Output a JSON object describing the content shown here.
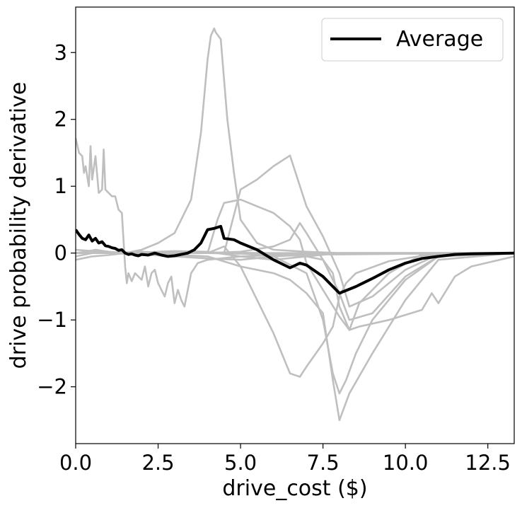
{
  "chart_data": {
    "type": "line",
    "title": "",
    "xlabel": "drive_cost ($)",
    "ylabel": "drive probability derivative",
    "xlim": [
      0,
      13.3
    ],
    "ylim": [
      -2.85,
      3.68
    ],
    "xticks": [
      0,
      2.5,
      5,
      7.5,
      10,
      12.5
    ],
    "xtick_labels": [
      "0.0",
      "2.5",
      "5.0",
      "7.5",
      "10.0",
      "12.5"
    ],
    "yticks": [
      -2,
      -1,
      0,
      1,
      2,
      3
    ],
    "ytick_labels": [
      "−2",
      "−1",
      "0",
      "1",
      "2",
      "3"
    ],
    "grid": false,
    "legend": {
      "position": "top-right",
      "entries": [
        "Average"
      ]
    },
    "colors": {
      "individual": "#bfbfbf",
      "average": "#000000"
    },
    "individual_series": [
      {
        "x": [
          0,
          0.1,
          0.2,
          0.25,
          0.3,
          0.4,
          0.45,
          0.5,
          0.6,
          0.7,
          0.8,
          0.85,
          0.9,
          1.0,
          1.1,
          1.2,
          1.3,
          1.4,
          1.5,
          1.55,
          1.6,
          1.7,
          1.8,
          1.9,
          2.0,
          2.1,
          2.2,
          2.3,
          2.4,
          2.5,
          2.6,
          2.7,
          2.8,
          2.9,
          3.0,
          3.1,
          3.2,
          3.3,
          3.5,
          3.7,
          4.0,
          5.0,
          6.0,
          7.0,
          8.0,
          10.0,
          13.3
        ],
        "y": [
          1.72,
          1.5,
          1.45,
          1.2,
          1.3,
          1.0,
          1.6,
          1.1,
          1.45,
          0.9,
          0.95,
          1.55,
          0.95,
          0.9,
          0.85,
          0.85,
          0.65,
          0.6,
          -0.2,
          -0.45,
          -0.3,
          -0.42,
          -0.3,
          -0.35,
          -0.4,
          -0.2,
          -0.5,
          -0.3,
          -0.25,
          -0.45,
          -0.55,
          -0.65,
          -0.45,
          -0.35,
          -0.75,
          -0.55,
          -0.7,
          -0.8,
          -0.3,
          -0.15,
          -0.1,
          -0.05,
          -0.03,
          -0.02,
          -0.02,
          -0.01,
          0
        ]
      },
      {
        "x": [
          0,
          0.3,
          0.6,
          1.0,
          1.5,
          2.0,
          2.5,
          3.0,
          3.5,
          3.8,
          4.0,
          4.1,
          4.2,
          4.25,
          4.4,
          4.6,
          4.8,
          5.0,
          5.5,
          6.0,
          7.0,
          8.0,
          10.0,
          13.3
        ],
        "y": [
          0.0,
          0.02,
          0.05,
          0.02,
          0.0,
          0.05,
          0.15,
          0.3,
          0.8,
          1.8,
          2.9,
          3.25,
          3.36,
          3.3,
          3.2,
          2.0,
          1.2,
          0.5,
          0.15,
          0.05,
          0.02,
          0.0,
          0.0,
          0.0
        ]
      },
      {
        "x": [
          0,
          1.0,
          2.0,
          3.0,
          4.0,
          4.5,
          5.0,
          5.5,
          6.0,
          6.5,
          7.0,
          7.5,
          8.0,
          8.3,
          9.0,
          10.0,
          11.0,
          13.3
        ],
        "y": [
          0.0,
          0.0,
          0.0,
          0.0,
          0.0,
          0.0,
          0.95,
          1.1,
          1.3,
          1.46,
          0.7,
          0.25,
          -0.3,
          -0.8,
          -0.65,
          -0.25,
          -0.02,
          0.0
        ]
      },
      {
        "x": [
          0,
          2.0,
          4.0,
          4.3,
          4.5,
          5.0,
          5.5,
          6.0,
          6.5,
          6.8,
          7.0,
          7.5,
          8.0,
          8.3,
          8.6,
          9.5,
          10.5,
          11.0,
          13.3
        ],
        "y": [
          0.0,
          0.0,
          0.0,
          0.5,
          0.75,
          0.8,
          0.7,
          0.6,
          0.4,
          0.2,
          -0.15,
          -0.55,
          -0.95,
          -1.15,
          -0.75,
          -0.3,
          -0.02,
          0.0,
          0.0
        ]
      },
      {
        "x": [
          0,
          2.0,
          4.0,
          4.5,
          5.0,
          6.0,
          6.5,
          6.8,
          7.0,
          7.5,
          7.8,
          8.0,
          8.2,
          8.5,
          9.5,
          10.5,
          11.5,
          13.3
        ],
        "y": [
          0.0,
          0.0,
          0.0,
          0.1,
          -0.2,
          -1.2,
          -1.8,
          -1.85,
          -1.7,
          -1.35,
          -1.1,
          -0.65,
          -0.45,
          -0.3,
          -0.12,
          -0.04,
          0.0,
          0.0
        ]
      },
      {
        "x": [
          0,
          2.0,
          4.0,
          5.0,
          6.0,
          6.5,
          6.8,
          7.0,
          7.5,
          8.0,
          8.3,
          9.0,
          10.0,
          11.0,
          13.3
        ],
        "y": [
          0.0,
          0.0,
          0.0,
          0.02,
          0.1,
          0.2,
          0.45,
          0.3,
          -0.1,
          -0.6,
          -1.0,
          -0.9,
          -0.35,
          -0.05,
          0.0
        ]
      },
      {
        "x": [
          0,
          2.0,
          4.0,
          5.0,
          6.0,
          6.5,
          7.0,
          7.5,
          7.8,
          8.0,
          8.3,
          9.0,
          10.0,
          11.0,
          13.3
        ],
        "y": [
          0.0,
          0.0,
          -0.05,
          -0.2,
          -0.3,
          -0.4,
          -0.6,
          -0.9,
          -1.9,
          -2.5,
          -2.1,
          -1.5,
          -0.7,
          -0.1,
          0.0
        ]
      },
      {
        "x": [
          0,
          2.0,
          4.0,
          5.0,
          6.0,
          7.0,
          7.5,
          7.8,
          8.0,
          8.2,
          8.5,
          9.0,
          10.0,
          11.0,
          13.3
        ],
        "y": [
          0.0,
          0.0,
          0.0,
          0.0,
          -0.05,
          -0.3,
          -1.0,
          -1.8,
          -2.1,
          -1.9,
          -1.5,
          -1.0,
          -0.4,
          -0.05,
          0.0
        ]
      },
      {
        "x": [
          0,
          2.0,
          4.0,
          6.0,
          7.0,
          7.5,
          7.8,
          8.0,
          8.3,
          8.6,
          9.5,
          10.5,
          10.8,
          11.0,
          11.5,
          12.0,
          13.3
        ],
        "y": [
          0.0,
          0.0,
          0.0,
          -0.02,
          -0.05,
          -0.1,
          -0.3,
          -0.8,
          -1.15,
          -1.1,
          -1.0,
          -0.85,
          -0.6,
          -0.75,
          -0.35,
          -0.2,
          -0.05
        ]
      },
      {
        "x": [
          0,
          0.5,
          1.0,
          1.5,
          2.0,
          2.5,
          3.0,
          4.0,
          5.0,
          6.0,
          7.0,
          8.0,
          10.0,
          13.3
        ],
        "y": [
          -0.1,
          -0.05,
          -0.03,
          0.0,
          0.01,
          0.02,
          0.03,
          0.02,
          -0.05,
          -0.1,
          -0.05,
          0.0,
          0.0,
          0.0
        ]
      },
      {
        "x": [
          0,
          0.5,
          1.0,
          2.0,
          3.0,
          4.0,
          5.0,
          6.0,
          8.0,
          10.0,
          13.3
        ],
        "y": [
          -0.05,
          0.0,
          0.0,
          -0.02,
          -0.05,
          -0.08,
          -0.1,
          -0.05,
          0.0,
          0.0,
          0.0
        ]
      },
      {
        "x": [
          0,
          0.5,
          1.0,
          2.0,
          3.0,
          4.0,
          6.0,
          13.3
        ],
        "y": [
          0.05,
          0.03,
          0.0,
          0.02,
          0.0,
          0.01,
          0.0,
          0.0
        ]
      }
    ],
    "series": [
      {
        "name": "Average",
        "x": [
          0,
          0.1,
          0.2,
          0.3,
          0.4,
          0.5,
          0.6,
          0.7,
          0.8,
          0.9,
          1.0,
          1.1,
          1.2,
          1.3,
          1.4,
          1.5,
          1.6,
          1.7,
          1.8,
          1.9,
          2.0,
          2.2,
          2.4,
          2.6,
          2.8,
          3.0,
          3.2,
          3.4,
          3.6,
          3.8,
          4.0,
          4.2,
          4.4,
          4.5,
          4.8,
          5.0,
          5.5,
          6.0,
          6.5,
          6.8,
          7.0,
          7.5,
          8.0,
          8.5,
          9.0,
          9.5,
          10.0,
          10.5,
          11.0,
          11.5,
          12.0,
          13.3
        ],
        "y": [
          0.35,
          0.28,
          0.22,
          0.2,
          0.27,
          0.18,
          0.22,
          0.15,
          0.17,
          0.11,
          0.1,
          0.08,
          0.07,
          0.04,
          0.05,
          0.0,
          -0.02,
          -0.01,
          -0.03,
          -0.04,
          -0.02,
          -0.03,
          0.0,
          -0.03,
          -0.05,
          -0.04,
          -0.02,
          0.0,
          0.05,
          0.15,
          0.35,
          0.37,
          0.4,
          0.22,
          0.2,
          0.15,
          0.05,
          -0.1,
          -0.22,
          -0.15,
          -0.18,
          -0.35,
          -0.6,
          -0.5,
          -0.38,
          -0.25,
          -0.15,
          -0.08,
          -0.05,
          -0.02,
          -0.01,
          0.0
        ]
      }
    ]
  }
}
